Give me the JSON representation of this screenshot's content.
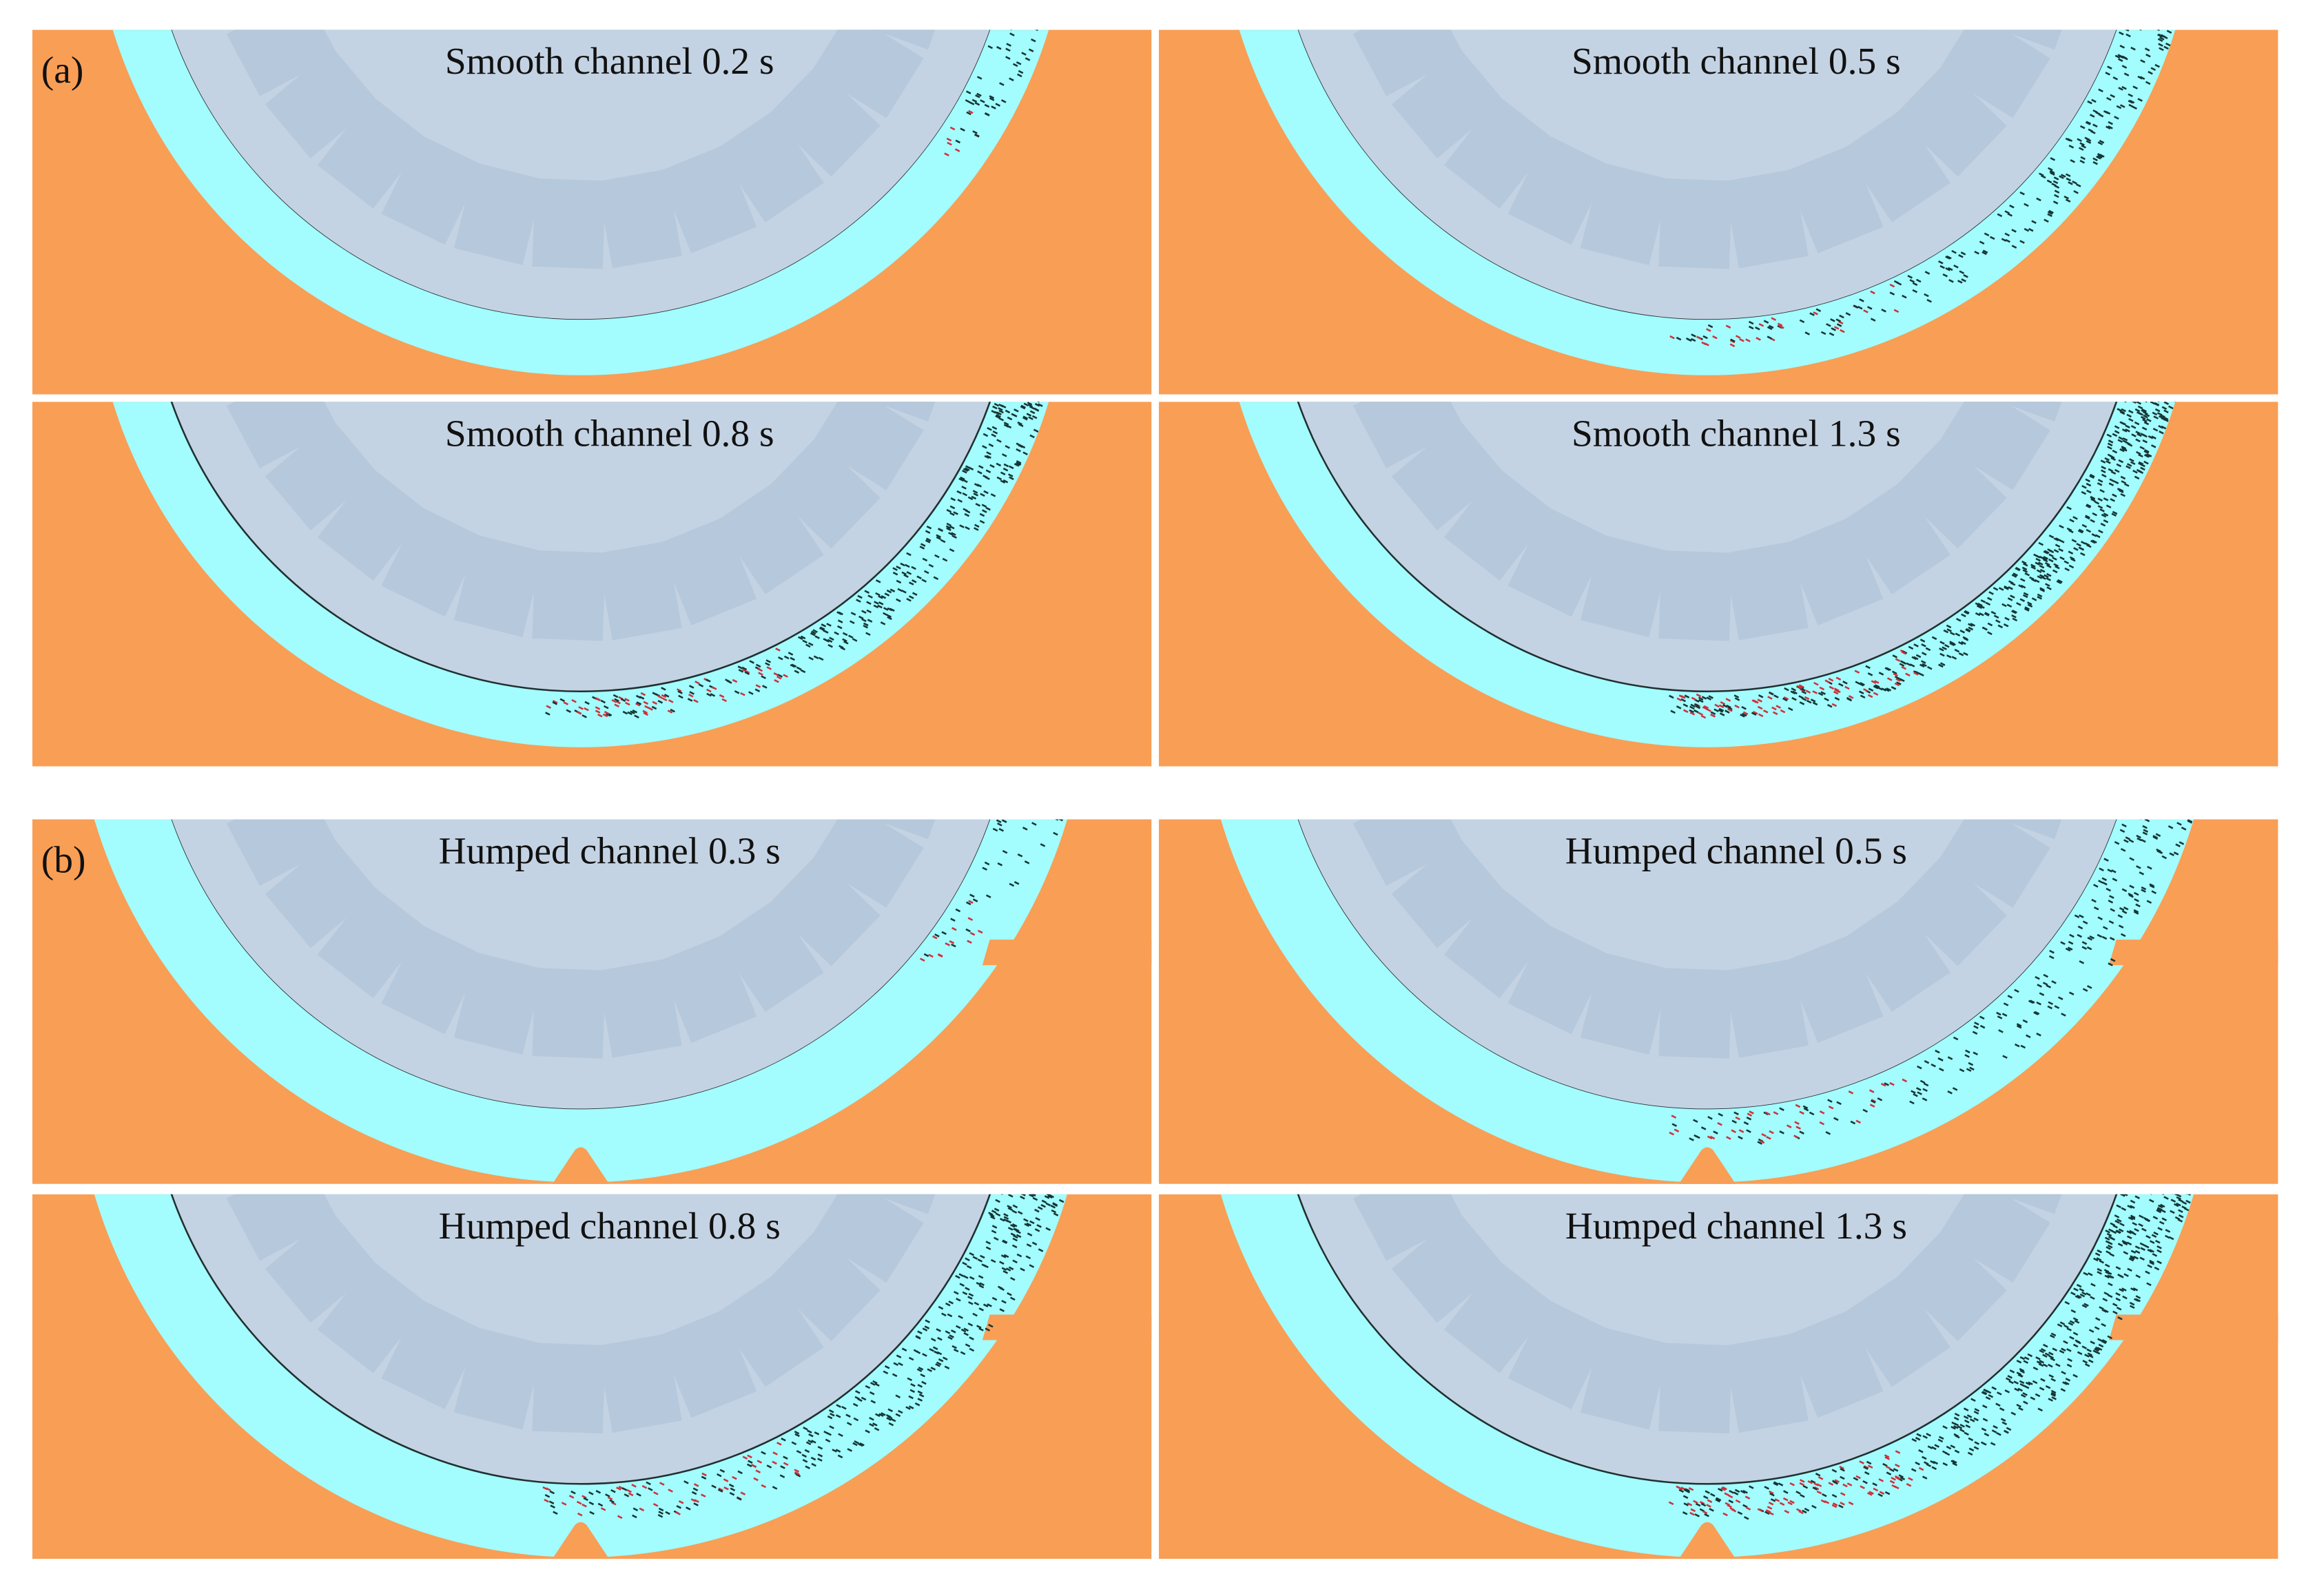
{
  "groups": [
    {
      "label": "(a)",
      "panels": [
        {
          "title": "Smooth channel 0.2 s"
        },
        {
          "title": "Smooth channel 0.5 s"
        },
        {
          "title": "Smooth channel 0.8 s"
        },
        {
          "title": "Smooth channel 1.3 s"
        }
      ]
    },
    {
      "label": "(b)",
      "panels": [
        {
          "title": "Humped channel 0.3 s"
        },
        {
          "title": "Humped channel 0.5 s"
        },
        {
          "title": "Humped channel 0.8 s"
        },
        {
          "title": "Humped channel 1.3 s"
        }
      ]
    }
  ]
}
